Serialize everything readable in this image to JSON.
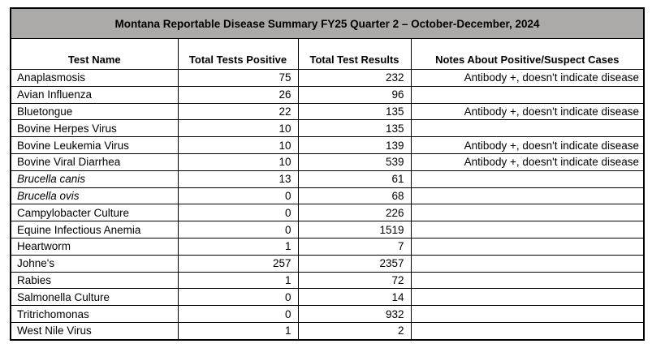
{
  "page": {
    "background_color": "#ffffff",
    "text_color": "#000000",
    "border_color": "#000000",
    "title_bar_color": "#acaaa8"
  },
  "table": {
    "title": "Montana Reportable Disease Summary FY25 Quarter 2 – October-December, 2024",
    "columns": [
      "Test Name",
      "Total Tests Positive",
      "Total Test Results",
      "Notes About Positive/Suspect Cases"
    ],
    "rows": [
      {
        "test": "Anaplasmosis",
        "positive": "75",
        "results": "232",
        "notes": "Antibody +, doesn't indicate disease",
        "italic": false
      },
      {
        "test": "Avian Influenza",
        "positive": "26",
        "results": "96",
        "notes": "",
        "italic": false
      },
      {
        "test": "Bluetongue",
        "positive": "22",
        "results": "135",
        "notes": "Antibody +, doesn't indicate disease",
        "italic": false
      },
      {
        "test": "Bovine Herpes Virus",
        "positive": "10",
        "results": "135",
        "notes": "",
        "italic": false
      },
      {
        "test": "Bovine Leukemia Virus",
        "positive": "10",
        "results": "139",
        "notes": "Antibody +, doesn't indicate disease",
        "italic": false
      },
      {
        "test": "Bovine Viral Diarrhea",
        "positive": "10",
        "results": "539",
        "notes": "Antibody +, doesn't indicate disease",
        "italic": false
      },
      {
        "test": "Brucella canis",
        "positive": "13",
        "results": "61",
        "notes": "",
        "italic": true
      },
      {
        "test": "Brucella ovis",
        "positive": "0",
        "results": "68",
        "notes": "",
        "italic": true
      },
      {
        "test": "Campylobacter Culture",
        "positive": "0",
        "results": "226",
        "notes": "",
        "italic": false
      },
      {
        "test": "Equine Infectious Anemia",
        "positive": "0",
        "results": "1519",
        "notes": "",
        "italic": false
      },
      {
        "test": "Heartworm",
        "positive": "1",
        "results": "7",
        "notes": "",
        "italic": false
      },
      {
        "test": "Johne's",
        "positive": "257",
        "results": "2357",
        "notes": "",
        "italic": false
      },
      {
        "test": "Rabies",
        "positive": "1",
        "results": "72",
        "notes": "",
        "italic": false
      },
      {
        "test": "Salmonella Culture",
        "positive": "0",
        "results": "14",
        "notes": "",
        "italic": false
      },
      {
        "test": "Tritrichomonas",
        "positive": "0",
        "results": "932",
        "notes": "",
        "italic": false
      },
      {
        "test": "West Nile Virus",
        "positive": "1",
        "results": "2",
        "notes": "",
        "italic": false
      }
    ]
  }
}
